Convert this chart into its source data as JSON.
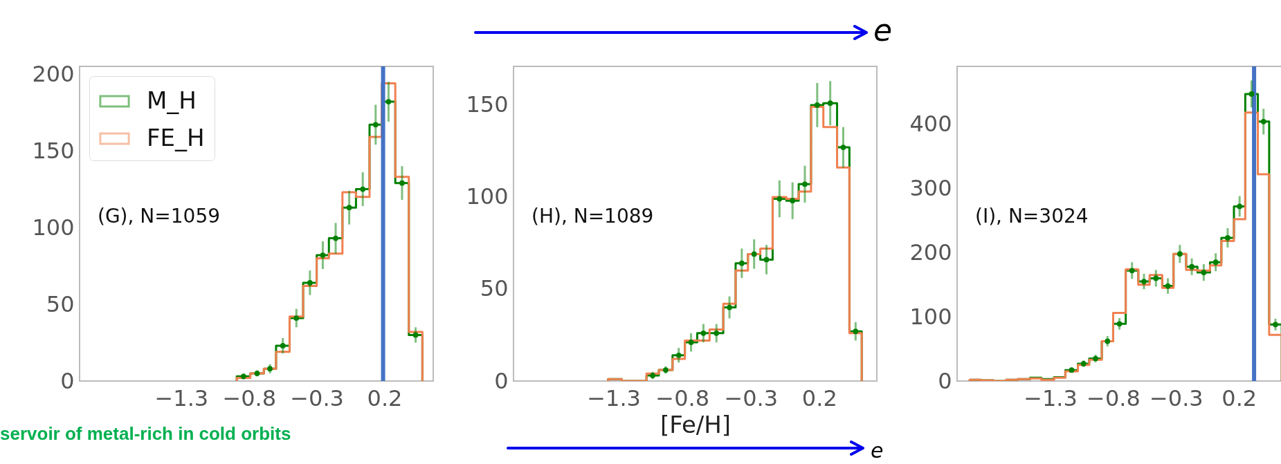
{
  "chart_data": [
    {
      "type": "histogram",
      "xlim": [
        -2.05,
        0.56
      ],
      "ylim": [
        0,
        205
      ],
      "xticks": [
        -1.3,
        -0.8,
        -0.3,
        0.2
      ],
      "yticks": [
        0,
        50,
        100,
        150,
        200
      ],
      "legend": "top left",
      "grid": false,
      "bins": [
        -0.89,
        -0.79,
        -0.69,
        -0.6,
        -0.5,
        -0.4,
        -0.3,
        -0.21,
        -0.11,
        -0.01,
        0.09,
        0.18,
        0.28,
        0.38,
        0.48
      ],
      "series": [
        {
          "name": "M_H",
          "color": "#008000",
          "values": [
            3,
            5,
            8,
            23,
            41,
            64,
            82,
            93,
            113,
            125,
            167,
            182,
            129,
            30
          ]
        },
        {
          "name": "FE_H",
          "color": "#f08050",
          "values": [
            2,
            5,
            8,
            19,
            42,
            62,
            80,
            83,
            123,
            120,
            159,
            194,
            133,
            32
          ]
        },
        {
          "type": "scatter",
          "color": "#008000",
          "x": [
            -0.84,
            -0.74,
            -0.645,
            -0.55,
            -0.45,
            -0.35,
            -0.255,
            -0.16,
            -0.06,
            0.04,
            0.135,
            0.23,
            0.33,
            0.43
          ],
          "values": [
            3,
            5,
            8,
            23,
            41,
            64,
            82,
            93,
            113,
            125,
            167,
            182,
            129,
            30
          ],
          "errors": [
            2,
            2,
            3,
            5,
            6,
            8,
            9,
            10,
            11,
            11,
            13,
            13,
            11,
            5
          ]
        }
      ],
      "ref_lines": [
        {
          "axis": "x",
          "value": 0.19,
          "color": "#4472c4"
        }
      ],
      "annotations": [
        "(G), N=1059",
        "servoir of metal-rich in cold orbits"
      ]
    },
    {
      "type": "histogram",
      "xlim": [
        -2.03,
        0.62
      ],
      "ylim": [
        0,
        171
      ],
      "xticks": [
        -1.3,
        -0.8,
        -0.3,
        0.2
      ],
      "yticks": [
        0,
        50,
        100,
        150
      ],
      "legend": "top left",
      "grid": false,
      "xlabel": "[Fe/H]",
      "bins": [
        -1.34,
        -1.24,
        -1.15,
        -1.06,
        -0.97,
        -0.87,
        -0.78,
        -0.69,
        -0.6,
        -0.5,
        -0.41,
        -0.32,
        -0.23,
        -0.14,
        -0.04,
        0.05,
        0.14,
        0.23,
        0.33,
        0.42,
        0.51
      ],
      "series": [
        {
          "name": "M_H",
          "color": "#008000",
          "values": [
            1,
            0,
            0,
            3,
            6,
            14,
            21,
            26,
            26,
            40,
            64,
            69,
            66,
            99,
            98,
            107,
            150,
            151,
            127,
            27
          ]
        },
        {
          "name": "FE_H",
          "color": "#f08050",
          "values": [
            1,
            0,
            0,
            4,
            6,
            12,
            22,
            22,
            28,
            42,
            60,
            69,
            72,
            100,
            99,
            103,
            149,
            138,
            116,
            26
          ]
        },
        {
          "type": "scatter",
          "color": "#008000",
          "x": [
            -1.015,
            -0.92,
            -0.825,
            -0.735,
            -0.645,
            -0.55,
            -0.455,
            -0.365,
            -0.275,
            -0.185,
            -0.09,
            0.005,
            0.095,
            0.185,
            0.28,
            0.375,
            0.465
          ],
          "values": [
            3,
            6,
            14,
            21,
            26,
            26,
            40,
            64,
            69,
            66,
            99,
            98,
            107,
            150,
            151,
            127,
            27
          ],
          "errors": [
            2,
            2,
            4,
            5,
            5,
            5,
            6,
            8,
            8,
            8,
            10,
            10,
            10,
            12,
            12,
            11,
            5
          ]
        }
      ],
      "annotations": [
        "(H), N=1089",
        "e",
        "e"
      ]
    },
    {
      "type": "histogram",
      "xlim": [
        -2.04,
        0.6
      ],
      "ylim": [
        0,
        490
      ],
      "xticks": [
        -1.3,
        -0.8,
        -0.3,
        0.2
      ],
      "yticks": [
        0,
        100,
        200,
        300,
        400
      ],
      "legend": "top left",
      "grid": false,
      "bins": [
        -1.94,
        -1.85,
        -1.75,
        -1.65,
        -1.56,
        -1.46,
        -1.37,
        -1.27,
        -1.18,
        -1.08,
        -0.99,
        -0.89,
        -0.8,
        -0.7,
        -0.6,
        -0.51,
        -0.41,
        -0.32,
        -0.22,
        -0.13,
        -0.03,
        0.06,
        0.16,
        0.25,
        0.35,
        0.44,
        0.54
      ],
      "series": [
        {
          "name": "M_H",
          "color": "#008000",
          "values": [
            2,
            1,
            0,
            2,
            3,
            5,
            3,
            6,
            17,
            27,
            35,
            62,
            89,
            172,
            155,
            160,
            148,
            198,
            178,
            169,
            185,
            223,
            272,
            447,
            404,
            88
          ]
        },
        {
          "name": "FE_H",
          "color": "#f08050",
          "values": [
            2,
            1,
            0,
            2,
            3,
            4,
            2,
            5,
            15,
            25,
            33,
            62,
            106,
            174,
            150,
            165,
            145,
            198,
            173,
            172,
            180,
            218,
            252,
            418,
            322,
            72
          ]
        },
        {
          "type": "scatter",
          "color": "#008000",
          "x": [
            -1.13,
            -1.035,
            -0.94,
            -0.845,
            -0.75,
            -0.65,
            -0.555,
            -0.46,
            -0.365,
            -0.27,
            -0.175,
            -0.08,
            0.015,
            0.11,
            0.205,
            0.3,
            0.395,
            0.49
          ],
          "values": [
            17,
            27,
            35,
            62,
            89,
            172,
            155,
            160,
            148,
            198,
            178,
            169,
            185,
            223,
            272,
            447,
            404,
            88
          ],
          "errors": [
            4,
            5,
            6,
            8,
            9,
            13,
            12,
            13,
            12,
            14,
            13,
            13,
            14,
            15,
            16,
            21,
            20,
            9
          ]
        }
      ],
      "ref_lines": [
        {
          "axis": "x",
          "value": 0.32,
          "color": "#4472c4"
        }
      ],
      "annotations": [
        "(I), N=3024"
      ]
    }
  ]
}
